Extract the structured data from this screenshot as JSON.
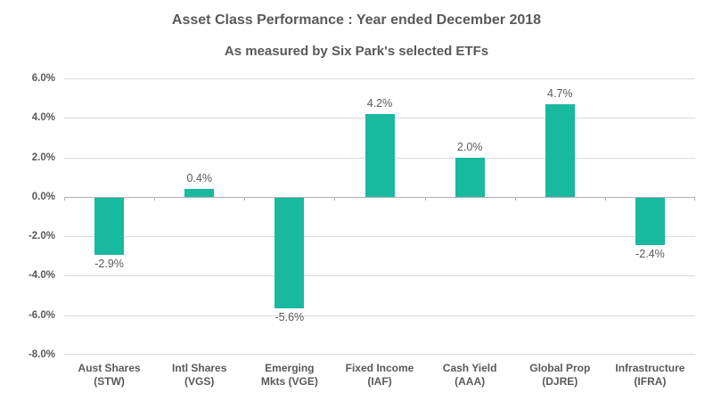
{
  "colors": {
    "bar": "#18B99F",
    "text": "#595959",
    "gridline": "#D9D9D9",
    "axis": "#B0B0B0",
    "background": "#FFFFFF"
  },
  "chart_data": {
    "type": "bar",
    "title": "Asset Class Performance : Year ended December 2018",
    "subtitle": "As measured by Six Park's selected ETFs",
    "categories": [
      "Aust Shares\n(STW)",
      "Intl Shares\n(VGS)",
      "Emerging\nMkts (VGE)",
      "Fixed Income\n(IAF)",
      "Cash Yield\n(AAA)",
      "Global Prop\n(DJRE)",
      "Infrastructure\n(IFRA)"
    ],
    "values": [
      -2.9,
      0.4,
      -5.6,
      4.2,
      2.0,
      4.7,
      -2.4
    ],
    "data_labels": [
      "-2.9%",
      "0.4%",
      "-5.6%",
      "4.2%",
      "2.0%",
      "4.7%",
      "-2.4%"
    ],
    "xlabel": "",
    "ylabel": "",
    "ylim": [
      -8.0,
      6.0
    ],
    "ytick_step": 2.0,
    "ytick_labels": [
      "6.0%",
      "4.0%",
      "2.0%",
      "0.0%",
      "-2.0%",
      "-4.0%",
      "-6.0%",
      "-8.0%"
    ],
    "grid": true,
    "legend": false,
    "bar_color": "#18B99F"
  }
}
